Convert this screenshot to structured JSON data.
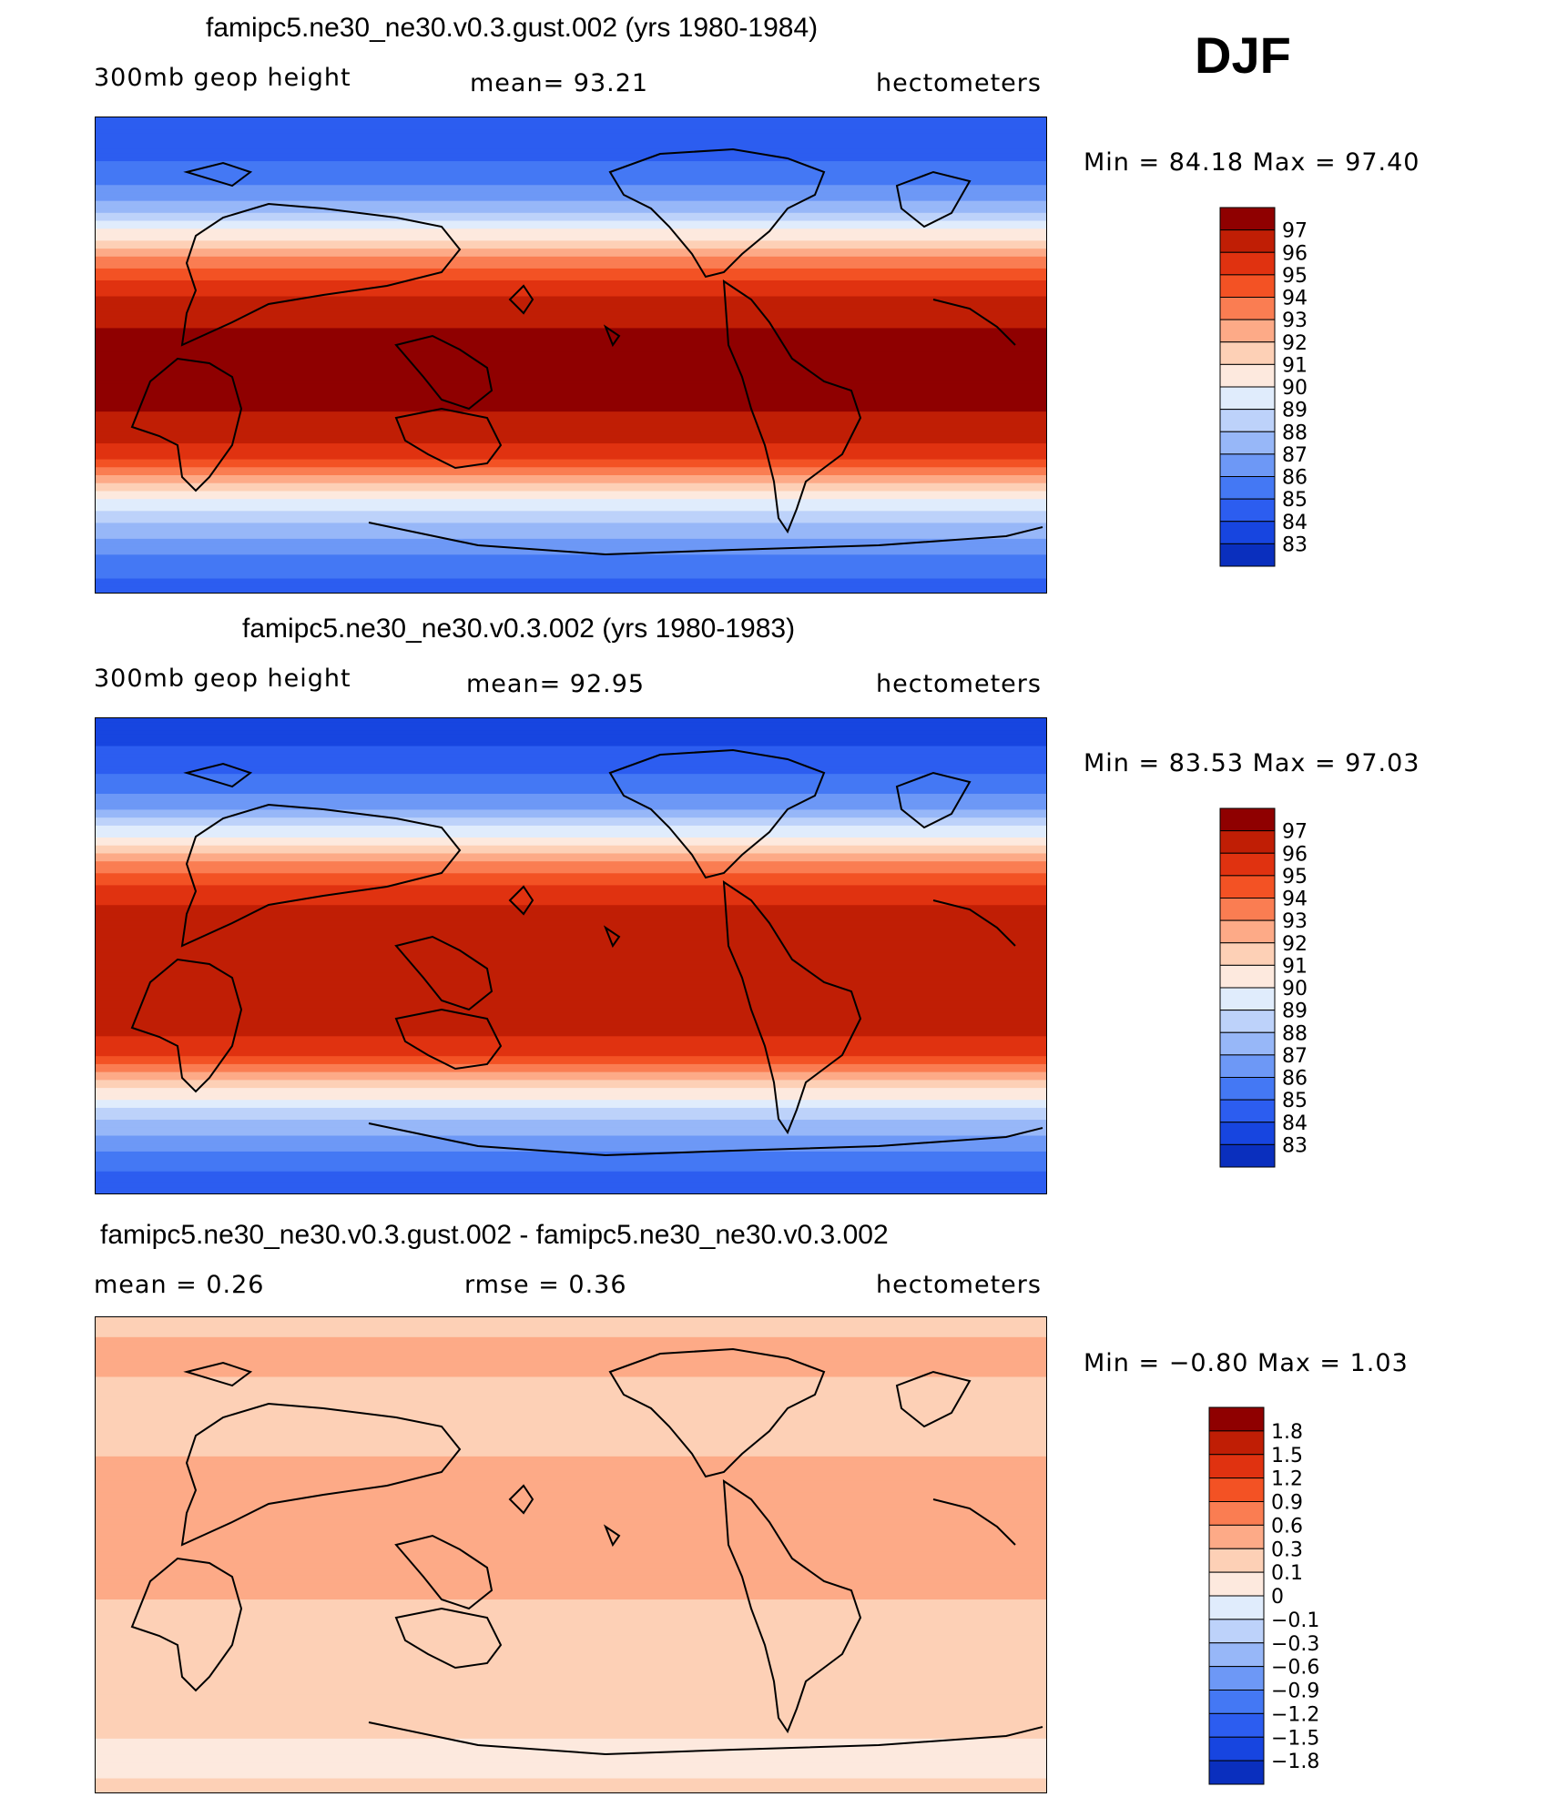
{
  "season": "DJF",
  "colors": {
    "abs_palette": [
      "#00127e",
      "#0a2fbe",
      "#1745e0",
      "#2c5df0",
      "#4478f4",
      "#6d98f6",
      "#97b7f8",
      "#bdd2fa",
      "#e0ecfc",
      "#fde9de",
      "#fdd0b6",
      "#fdaa87",
      "#fa7d52",
      "#f35224",
      "#e03210",
      "#c01e05",
      "#8f0000"
    ],
    "diff_palette": [
      "#00127e",
      "#0a2fbe",
      "#1745e0",
      "#2c5df0",
      "#4478f4",
      "#6d98f6",
      "#97b7f8",
      "#bdd2fa",
      "#e0ecfc",
      "#fde9de",
      "#fdd0b6",
      "#fdaa87",
      "#fa7d52",
      "#f35224",
      "#e03210",
      "#c01e05",
      "#8f0000"
    ],
    "coastline": "#000000"
  },
  "chart_data": [
    {
      "type": "heatmap",
      "title": "famipc5.ne30_ne30.v0.3.gust.002 (yrs 1980-1984)",
      "left_label": "300mb  geop  height",
      "center_label": "mean=   93.21",
      "units": "hectometers",
      "stats": "Min  =    84.18  Max  =    97.40",
      "mean": 93.21,
      "min": 84.18,
      "max": 97.4,
      "levels": [
        "97",
        "96",
        "95",
        "94",
        "93",
        "92",
        "91",
        "90",
        "89",
        "88",
        "87",
        "86",
        "85",
        "84",
        "83"
      ],
      "profile": [
        84,
        84.5,
        85.5,
        87,
        90,
        93,
        95.5,
        96.8,
        97.2,
        97.3,
        97.2,
        96.8,
        95.5,
        92,
        89,
        87,
        85.5,
        84.5
      ]
    },
    {
      "type": "heatmap",
      "title": "famipc5.ne30_ne30.v0.3.002 (yrs 1980-1983)",
      "left_label": "300mb  geop  height",
      "center_label": "mean=   92.95",
      "units": "hectometers",
      "stats": "Min  =    83.53  Max  =    97.03",
      "mean": 92.95,
      "min": 83.53,
      "max": 97.03,
      "levels": [
        "97",
        "96",
        "95",
        "94",
        "93",
        "92",
        "91",
        "90",
        "89",
        "88",
        "87",
        "86",
        "85",
        "84",
        "83"
      ],
      "profile": [
        83.6,
        84,
        85,
        86.5,
        89.5,
        92.8,
        95.2,
        96.4,
        96.8,
        96.9,
        96.8,
        96.4,
        95.2,
        91.8,
        88.8,
        86.8,
        85.3,
        84.2
      ]
    },
    {
      "type": "heatmap",
      "title": "famipc5.ne30_ne30.v0.3.gust.002 - famipc5.ne30_ne30.v0.3.002",
      "left_label": "mean  =     0.26",
      "center_label": "rmse  =     0.36",
      "units": "hectometers",
      "stats": "Min  =   −0.80  Max  =     1.03",
      "mean": 0.26,
      "rmse": 0.36,
      "min": -0.8,
      "max": 1.03,
      "levels": [
        "1.8",
        "1.5",
        "1.2",
        "0.9",
        "0.6",
        "0.3",
        "0.1",
        "0",
        "−0.1",
        "−0.3",
        "−0.6",
        "−0.9",
        "−1.2",
        "−1.5",
        "−1.8"
      ],
      "profile": [
        0.2,
        0.35,
        0.3,
        0.25,
        0.1,
        0.3,
        0.35,
        0.3,
        0.3,
        0.3,
        0.3,
        0.25,
        0.2,
        0.15,
        0.2,
        0.1,
        0.05,
        0.15
      ]
    }
  ]
}
